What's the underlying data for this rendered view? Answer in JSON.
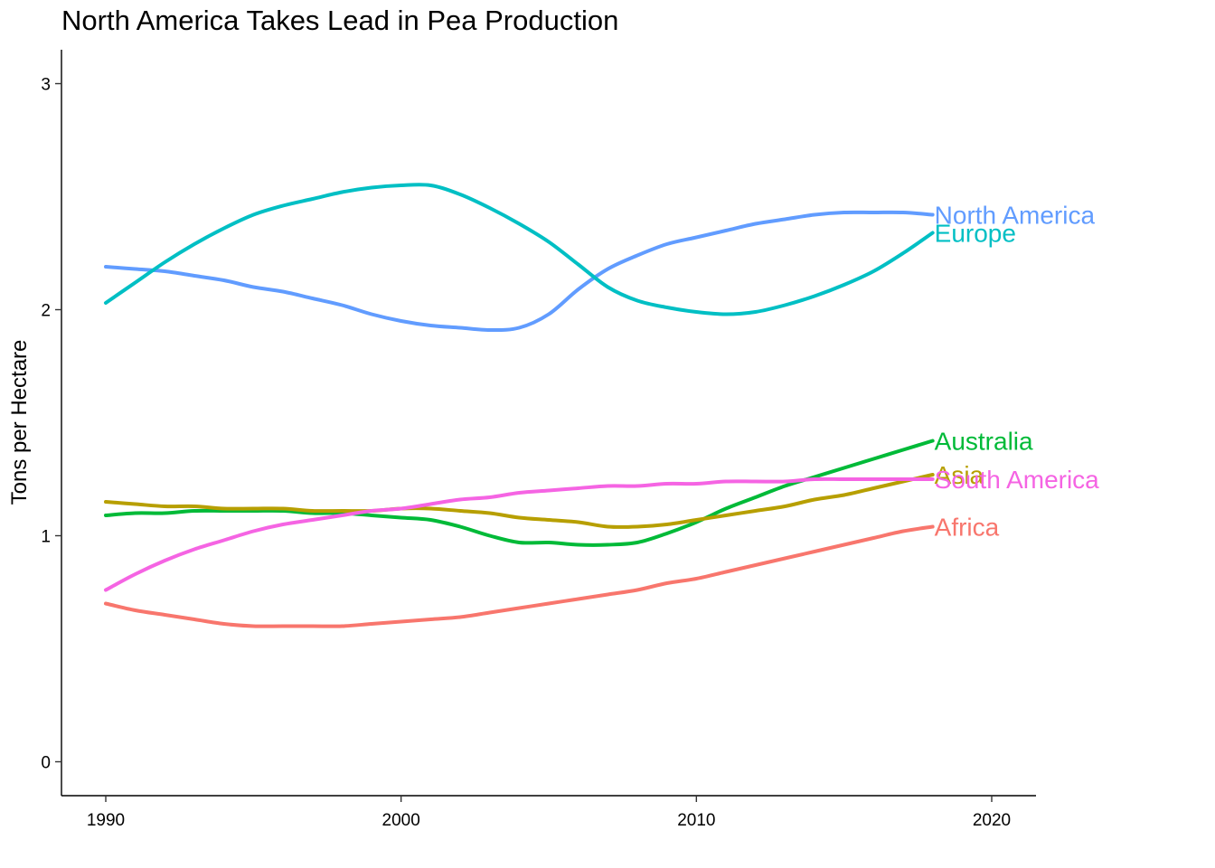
{
  "chart_data": {
    "type": "line",
    "title": "North America Takes Lead in Pea Production",
    "xlabel": "",
    "ylabel": "Tons per Hectare",
    "xlim": [
      1988.5,
      2021.5
    ],
    "ylim": [
      -0.15,
      3.15
    ],
    "xticks": [
      1990,
      2000,
      2010,
      2020
    ],
    "yticks": [
      0,
      1,
      2,
      3
    ],
    "grid": false,
    "legend": "none",
    "series": [
      {
        "name": "North America",
        "color": "#619CFF",
        "x": [
          1990,
          1991,
          1992,
          1993,
          1994,
          1995,
          1996,
          1997,
          1998,
          1999,
          2000,
          2001,
          2002,
          2003,
          2004,
          2005,
          2006,
          2007,
          2008,
          2009,
          2010,
          2011,
          2012,
          2013,
          2014,
          2015,
          2016,
          2017,
          2018
        ],
        "y": [
          2.19,
          2.18,
          2.17,
          2.15,
          2.13,
          2.1,
          2.08,
          2.05,
          2.02,
          1.98,
          1.95,
          1.93,
          1.92,
          1.91,
          1.92,
          1.98,
          2.09,
          2.18,
          2.24,
          2.29,
          2.32,
          2.35,
          2.38,
          2.4,
          2.42,
          2.43,
          2.43,
          2.43,
          2.42
        ]
      },
      {
        "name": "Europe",
        "color": "#00BFC4",
        "x": [
          1990,
          1991,
          1992,
          1993,
          1994,
          1995,
          1996,
          1997,
          1998,
          1999,
          2000,
          2001,
          2002,
          2003,
          2004,
          2005,
          2006,
          2007,
          2008,
          2009,
          2010,
          2011,
          2012,
          2013,
          2014,
          2015,
          2016,
          2017,
          2018
        ],
        "y": [
          2.03,
          2.12,
          2.21,
          2.29,
          2.36,
          2.42,
          2.46,
          2.49,
          2.52,
          2.54,
          2.55,
          2.55,
          2.51,
          2.45,
          2.38,
          2.3,
          2.2,
          2.1,
          2.04,
          2.01,
          1.99,
          1.98,
          1.99,
          2.02,
          2.06,
          2.11,
          2.17,
          2.25,
          2.34
        ]
      },
      {
        "name": "Australia",
        "color": "#00BA38",
        "x": [
          1990,
          1991,
          1992,
          1993,
          1994,
          1995,
          1996,
          1997,
          1998,
          1999,
          2000,
          2001,
          2002,
          2003,
          2004,
          2005,
          2006,
          2007,
          2008,
          2009,
          2010,
          2011,
          2012,
          2013,
          2014,
          2015,
          2016,
          2017,
          2018
        ],
        "y": [
          1.09,
          1.1,
          1.1,
          1.11,
          1.11,
          1.11,
          1.11,
          1.1,
          1.1,
          1.09,
          1.08,
          1.07,
          1.04,
          1.0,
          0.97,
          0.97,
          0.96,
          0.96,
          0.97,
          1.01,
          1.06,
          1.12,
          1.17,
          1.22,
          1.26,
          1.3,
          1.34,
          1.38,
          1.42
        ]
      },
      {
        "name": "Asia",
        "color": "#B79F00",
        "x": [
          1990,
          1991,
          1992,
          1993,
          1994,
          1995,
          1996,
          1997,
          1998,
          1999,
          2000,
          2001,
          2002,
          2003,
          2004,
          2005,
          2006,
          2007,
          2008,
          2009,
          2010,
          2011,
          2012,
          2013,
          2014,
          2015,
          2016,
          2017,
          2018
        ],
        "y": [
          1.15,
          1.14,
          1.13,
          1.13,
          1.12,
          1.12,
          1.12,
          1.11,
          1.11,
          1.11,
          1.12,
          1.12,
          1.11,
          1.1,
          1.08,
          1.07,
          1.06,
          1.04,
          1.04,
          1.05,
          1.07,
          1.09,
          1.11,
          1.13,
          1.16,
          1.18,
          1.21,
          1.24,
          1.27
        ]
      },
      {
        "name": "South America",
        "color": "#F564E3",
        "x": [
          1990,
          1991,
          1992,
          1993,
          1994,
          1995,
          1996,
          1997,
          1998,
          1999,
          2000,
          2001,
          2002,
          2003,
          2004,
          2005,
          2006,
          2007,
          2008,
          2009,
          2010,
          2011,
          2012,
          2013,
          2014,
          2015,
          2016,
          2017,
          2018
        ],
        "y": [
          0.76,
          0.83,
          0.89,
          0.94,
          0.98,
          1.02,
          1.05,
          1.07,
          1.09,
          1.11,
          1.12,
          1.14,
          1.16,
          1.17,
          1.19,
          1.2,
          1.21,
          1.22,
          1.22,
          1.23,
          1.23,
          1.24,
          1.24,
          1.24,
          1.25,
          1.25,
          1.25,
          1.25,
          1.25
        ]
      },
      {
        "name": "Africa",
        "color": "#F8766D",
        "x": [
          1990,
          1991,
          1992,
          1993,
          1994,
          1995,
          1996,
          1997,
          1998,
          1999,
          2000,
          2001,
          2002,
          2003,
          2004,
          2005,
          2006,
          2007,
          2008,
          2009,
          2010,
          2011,
          2012,
          2013,
          2014,
          2015,
          2016,
          2017,
          2018
        ],
        "y": [
          0.7,
          0.67,
          0.65,
          0.63,
          0.61,
          0.6,
          0.6,
          0.6,
          0.6,
          0.61,
          0.62,
          0.63,
          0.64,
          0.66,
          0.68,
          0.7,
          0.72,
          0.74,
          0.76,
          0.79,
          0.81,
          0.84,
          0.87,
          0.9,
          0.93,
          0.96,
          0.99,
          1.02,
          1.04
        ]
      }
    ]
  }
}
